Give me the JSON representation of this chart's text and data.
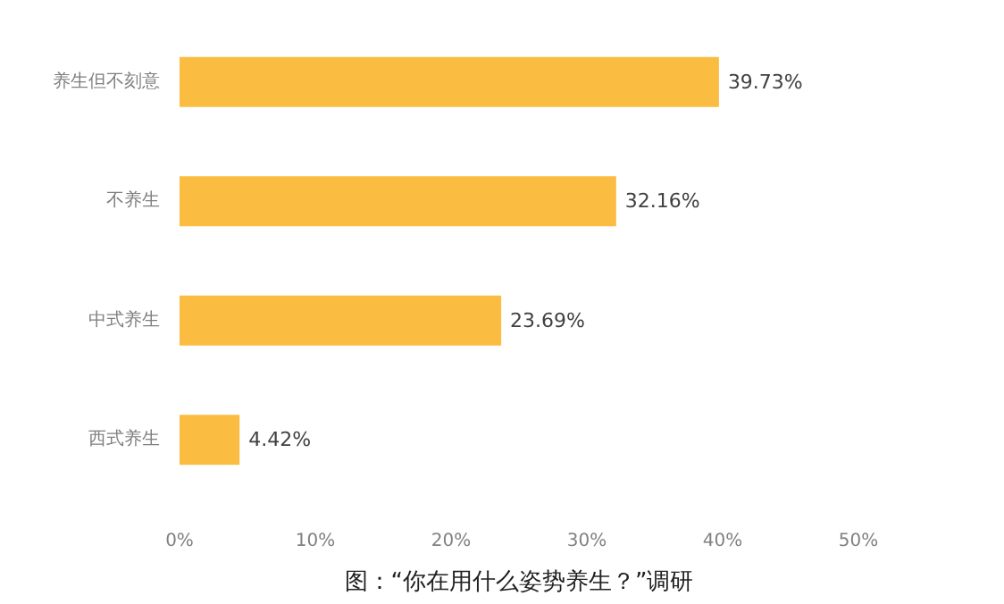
{
  "chart_data": {
    "type": "bar",
    "orientation": "horizontal",
    "title": "图：“你在用什么姿势养生？”调研",
    "categories": [
      "养生但不刻意",
      "不养生",
      "中式养生",
      "西式养生"
    ],
    "values": [
      39.73,
      32.16,
      23.69,
      4.42
    ],
    "value_labels": [
      "39.73%",
      "32.16%",
      "23.69%",
      "4.42%"
    ],
    "color": "#fbbd41",
    "xlim": [
      0,
      50
    ],
    "xticks": [
      {
        "value": 0,
        "label": "0%"
      },
      {
        "value": 10,
        "label": "10%"
      },
      {
        "value": 20,
        "label": "20%"
      },
      {
        "value": 30,
        "label": "30%"
      },
      {
        "value": 40,
        "label": "40%"
      },
      {
        "value": 50,
        "label": "50%"
      }
    ],
    "grid": false
  }
}
